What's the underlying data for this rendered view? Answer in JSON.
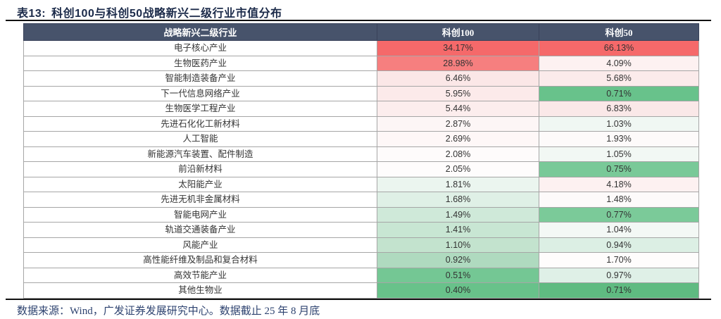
{
  "title": {
    "prefix": "表13:",
    "text": "科创100与科创50战略新兴二级行业市值分布"
  },
  "table": {
    "headers": [
      "战略新兴二级行业",
      "科创100",
      "科创50"
    ],
    "rows": [
      {
        "industry": "电子核心产业",
        "kc100": {
          "v": "34.17%",
          "bg": "#F5696A"
        },
        "kc50": {
          "v": "66.13%",
          "bg": "#F5696A"
        }
      },
      {
        "industry": "生物医药产业",
        "kc100": {
          "v": "28.98%",
          "bg": "#F67F7F"
        },
        "kc50": {
          "v": "4.09%",
          "bg": "#FDF1F1"
        }
      },
      {
        "industry": "智能制造装备产业",
        "kc100": {
          "v": "6.46%",
          "bg": "#FBE7E7"
        },
        "kc50": {
          "v": "5.68%",
          "bg": "#FBEBEB"
        }
      },
      {
        "industry": "下一代信息网络产业",
        "kc100": {
          "v": "5.95%",
          "bg": "#FCEAEA"
        },
        "kc50": {
          "v": "0.71%",
          "bg": "#68C28B"
        }
      },
      {
        "industry": "生物医学工程产业",
        "kc100": {
          "v": "5.44%",
          "bg": "#FCEDED"
        },
        "kc50": {
          "v": "6.83%",
          "bg": "#FAE8E8"
        }
      },
      {
        "industry": "先进石化化工新材料",
        "kc100": {
          "v": "2.87%",
          "bg": "#FDF6F6"
        },
        "kc50": {
          "v": "1.03%",
          "bg": "#F0F7F3"
        }
      },
      {
        "industry": "人工智能",
        "kc100": {
          "v": "2.69%",
          "bg": "#FEF7F7"
        },
        "kc50": {
          "v": "1.93%",
          "bg": "#FDFAFA"
        }
      },
      {
        "industry": "新能源汽车装置、配件制造",
        "kc100": {
          "v": "2.08%",
          "bg": "#FEFBFB"
        },
        "kc50": {
          "v": "1.05%",
          "bg": "#F2F8F4"
        }
      },
      {
        "industry": "前沿新材料",
        "kc100": {
          "v": "2.05%",
          "bg": "#FEFCFC"
        },
        "kc50": {
          "v": "0.75%",
          "bg": "#79C998"
        }
      },
      {
        "industry": "太阳能产业",
        "kc100": {
          "v": "1.81%",
          "bg": "#EBF5EF"
        },
        "kc50": {
          "v": "4.18%",
          "bg": "#FDF1F1"
        }
      },
      {
        "industry": "先进无机非金属材料",
        "kc100": {
          "v": "1.68%",
          "bg": "#DFF0E6"
        },
        "kc50": {
          "v": "1.48%",
          "bg": "#FDFAFA"
        }
      },
      {
        "industry": "智能电网产业",
        "kc100": {
          "v": "1.49%",
          "bg": "#CFE9D9"
        },
        "kc50": {
          "v": "0.77%",
          "bg": "#7BCA99"
        }
      },
      {
        "industry": "轨道交通装备产业",
        "kc100": {
          "v": "1.41%",
          "bg": "#C8E6D3"
        },
        "kc50": {
          "v": "1.04%",
          "bg": "#F3F8F5"
        }
      },
      {
        "industry": "风能产业",
        "kc100": {
          "v": "1.10%",
          "bg": "#C3E3CE"
        },
        "kc50": {
          "v": "0.94%",
          "bg": "#DCEFE4"
        }
      },
      {
        "industry": "高性能纤维及制品和复合材料",
        "kc100": {
          "v": "0.92%",
          "bg": "#AFDABF"
        },
        "kc50": {
          "v": "1.70%",
          "bg": "#FEFCFC"
        }
      },
      {
        "industry": "高效节能产业",
        "kc100": {
          "v": "0.51%",
          "bg": "#74C794"
        },
        "kc50": {
          "v": "0.97%",
          "bg": "#DFF0E7"
        }
      },
      {
        "industry": "其他生物业",
        "kc100": {
          "v": "0.40%",
          "bg": "#68C28A"
        },
        "kc50": {
          "v": "0.71%",
          "bg": "#5FBB81"
        }
      }
    ]
  },
  "footer": {
    "text": "数据来源：Wind，广发证券发展研究中心。数据截止 25 年 8 月底"
  },
  "colors": {
    "header_bg": "#47536B",
    "header_text": "#FFFFFF",
    "max_red": "#F5696A",
    "min_green": "#5FBB81",
    "rule": "#111111",
    "title_text": "#1C2B4A",
    "footer_text": "#2E4370"
  }
}
